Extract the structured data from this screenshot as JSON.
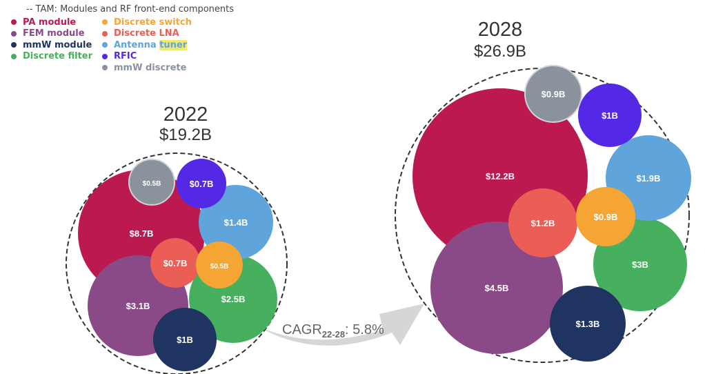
{
  "legend": {
    "title": "-- TAM: Modules and RF front-end components",
    "items": [
      {
        "label": "PA module",
        "color": "#bc1a4f"
      },
      {
        "label": "FEM module",
        "color": "#8a4a88"
      },
      {
        "label": "mmW module",
        "color": "#1f3461"
      },
      {
        "label": "Discrete filter",
        "color": "#46b05f"
      },
      {
        "label": "Discrete switch",
        "color": "#f4a534"
      },
      {
        "label": "Discrete LNA",
        "color": "#eb5e55"
      },
      {
        "label": "Antenna tuner",
        "color": "#5fa4db"
      },
      {
        "label": "RFIC",
        "color": "#5429e6"
      },
      {
        "label": "mmW discrete",
        "color": "#8a939d"
      }
    ]
  },
  "cagr": {
    "prefix": "CAGR",
    "subscript": "22-28",
    "suffix": ": 5.8%"
  },
  "chart_data": {
    "type": "bubble",
    "unit": "$B",
    "groups": [
      {
        "year": "2022",
        "total": "$19.2B",
        "segments": [
          {
            "name": "PA module",
            "value": 8.7,
            "label": "$8.7B"
          },
          {
            "name": "FEM module",
            "value": 3.1,
            "label": "$3.1B"
          },
          {
            "name": "Discrete filter",
            "value": 2.5,
            "label": "$2.5B"
          },
          {
            "name": "Antenna tuner",
            "value": 1.4,
            "label": "$1.4B"
          },
          {
            "name": "mmW module",
            "value": 1.0,
            "label": "$1B"
          },
          {
            "name": "RFIC",
            "value": 0.7,
            "label": "$0.7B"
          },
          {
            "name": "Discrete LNA",
            "value": 0.7,
            "label": "$0.7B"
          },
          {
            "name": "mmW discrete",
            "value": 0.5,
            "label": "$0.5B"
          },
          {
            "name": "Discrete switch",
            "value": 0.5,
            "label": "$0.5B"
          }
        ]
      },
      {
        "year": "2028",
        "total": "$26.9B",
        "segments": [
          {
            "name": "PA module",
            "value": 12.2,
            "label": "$12.2B"
          },
          {
            "name": "FEM module",
            "value": 4.5,
            "label": "$4.5B"
          },
          {
            "name": "Discrete filter",
            "value": 3.0,
            "label": "$3B"
          },
          {
            "name": "Antenna tuner",
            "value": 1.9,
            "label": "$1.9B"
          },
          {
            "name": "mmW module",
            "value": 1.3,
            "label": "$1.3B"
          },
          {
            "name": "Discrete LNA",
            "value": 1.2,
            "label": "$1.2B"
          },
          {
            "name": "RFIC",
            "value": 1.0,
            "label": "$1B"
          },
          {
            "name": "mmW discrete",
            "value": 0.9,
            "label": "$0.9B"
          },
          {
            "name": "Discrete switch",
            "value": 0.9,
            "label": "$0.9B"
          }
        ]
      }
    ]
  }
}
